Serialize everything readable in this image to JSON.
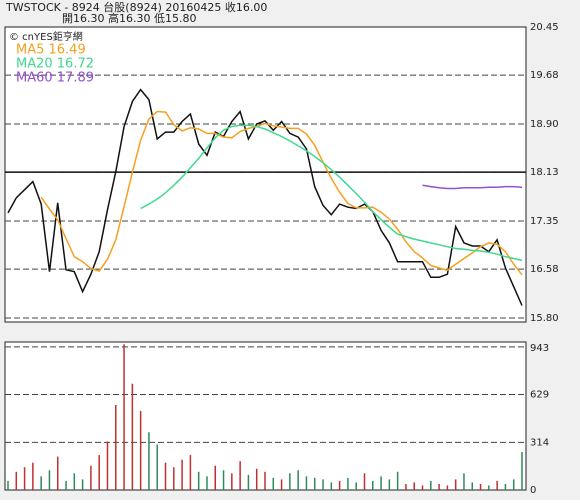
{
  "chart_data": [
    {
      "type": "line",
      "header": [
        "TWSTOCK - 8924 台股(8924) 20160425 收16.00",
        "開16.30 高16.30 低15.80"
      ],
      "source": "© cnYES鉅亨網",
      "ylim": [
        15.8,
        20.45
      ],
      "yticks": [
        20.45,
        19.68,
        {
          "value": 18.9,
          "label": "18.90"
        },
        18.13,
        17.35,
        16.58,
        {
          "value": 15.8,
          "label": "15.80"
        }
      ],
      "reference_line": 18.13,
      "series": [
        {
          "name": "close",
          "color": "#111111",
          "values": [
            17.48,
            17.72,
            17.85,
            17.98,
            17.62,
            16.54,
            17.64,
            16.57,
            16.54,
            16.22,
            16.5,
            16.86,
            17.53,
            18.14,
            18.86,
            19.26,
            19.45,
            19.29,
            18.66,
            18.77,
            18.77,
            18.94,
            19.06,
            18.58,
            18.4,
            18.77,
            18.7,
            18.94,
            19.1,
            18.66,
            18.9,
            18.95,
            18.8,
            18.94,
            18.75,
            18.69,
            18.5,
            17.9,
            17.6,
            17.45,
            17.62,
            17.57,
            17.55,
            17.62,
            17.5,
            17.2,
            17.0,
            16.7,
            16.7,
            16.7,
            16.7,
            16.45,
            16.45,
            16.5,
            17.26,
            17.0,
            16.95,
            16.95,
            16.86,
            17.05,
            16.6,
            16.3,
            16.0
          ]
        },
        {
          "name": "MA5 16.49",
          "color": "#f5a020",
          "values": [
            null,
            null,
            null,
            null,
            17.73,
            17.54,
            17.37,
            17.07,
            16.78,
            16.7,
            16.59,
            16.55,
            16.74,
            17.05,
            17.58,
            18.13,
            18.64,
            18.98,
            19.1,
            19.09,
            18.89,
            18.79,
            18.84,
            18.82,
            18.75,
            18.75,
            18.69,
            18.68,
            18.78,
            18.83,
            18.86,
            18.91,
            18.87,
            18.85,
            18.83,
            18.83,
            18.74,
            18.56,
            18.29,
            18.03,
            17.81,
            17.63,
            17.56,
            17.56,
            17.57,
            17.49,
            17.38,
            17.22,
            17.02,
            16.86,
            16.76,
            16.64,
            16.6,
            16.56,
            16.66,
            16.75,
            16.84,
            16.94,
            17.0,
            16.98,
            16.86,
            16.66,
            16.49
          ]
        },
        {
          "name": "MA20 16.72",
          "color": "#40d890",
          "values": [
            null,
            null,
            null,
            null,
            null,
            null,
            null,
            null,
            null,
            null,
            null,
            null,
            null,
            null,
            null,
            null,
            17.55,
            17.62,
            17.7,
            17.8,
            17.92,
            18.05,
            18.2,
            18.35,
            18.52,
            18.68,
            18.8,
            18.86,
            18.88,
            18.88,
            18.86,
            18.82,
            18.76,
            18.7,
            18.63,
            18.55,
            18.47,
            18.38,
            18.28,
            18.17,
            18.05,
            17.92,
            17.79,
            17.65,
            17.5,
            17.37,
            17.25,
            17.14,
            17.1,
            17.06,
            17.03,
            17.0,
            16.97,
            16.94,
            16.91,
            16.9,
            16.88,
            16.87,
            16.85,
            16.82,
            16.78,
            16.75,
            16.72
          ]
        },
        {
          "name": "MA60 17.89",
          "color": "#9050d0",
          "values": [
            null,
            null,
            null,
            null,
            null,
            null,
            null,
            null,
            null,
            null,
            null,
            null,
            null,
            null,
            null,
            null,
            null,
            null,
            null,
            null,
            null,
            null,
            null,
            null,
            null,
            null,
            null,
            null,
            null,
            null,
            null,
            null,
            null,
            null,
            null,
            null,
            null,
            null,
            null,
            null,
            null,
            null,
            null,
            null,
            null,
            null,
            null,
            null,
            null,
            null,
            17.92,
            17.9,
            17.88,
            17.87,
            17.87,
            17.88,
            17.88,
            17.88,
            17.89,
            17.89,
            17.9,
            17.9,
            17.89
          ]
        }
      ]
    },
    {
      "type": "bar",
      "ylim": [
        0,
        975
      ],
      "yticks": [
        943,
        629,
        314,
        0
      ],
      "up_color": "#c03030",
      "down_color": "#2e8b57",
      "values": [
        60,
        120,
        150,
        180,
        90,
        130,
        220,
        60,
        110,
        70,
        160,
        230,
        320,
        560,
        960,
        700,
        520,
        380,
        300,
        180,
        150,
        200,
        230,
        120,
        90,
        160,
        130,
        110,
        190,
        100,
        140,
        120,
        80,
        70,
        110,
        130,
        90,
        80,
        70,
        50,
        60,
        80,
        50,
        110,
        60,
        90,
        70,
        120,
        40,
        50,
        30,
        60,
        40,
        30,
        70,
        110,
        50,
        40,
        30,
        60,
        40,
        70,
        250
      ]
    }
  ]
}
